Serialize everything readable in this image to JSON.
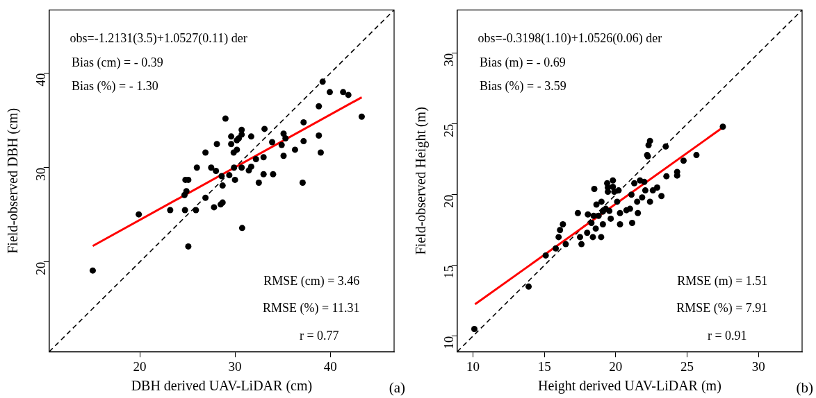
{
  "chart_data": [
    {
      "type": "scatter",
      "xlabel": "DBH derived UAV-LiDAR (cm)",
      "ylabel": "Field-observed DBH (cm)",
      "xlim": [
        10.5,
        46.7
      ],
      "ylim": [
        10.5,
        46.7
      ],
      "xticks": [
        20,
        30,
        40
      ],
      "yticks": [
        20,
        30,
        40
      ],
      "grid": false,
      "legend": false,
      "annotations": [
        "obs=-1.2131(3.5)+1.0527(0.11) der",
        "Bias (cm) = - 0.39",
        "Bias (%) = - 1.30",
        "RMSE (cm) = 3.46",
        "RMSE (%) = 11.31",
        "r = 0.77",
        "(a)"
      ],
      "series": [
        {
          "type": "scatter",
          "color": "#000000",
          "marker": "circle",
          "x": [
            15.07,
            19.9,
            23.2,
            24.75,
            25.9,
            25.1,
            24.7,
            24.9,
            24.8,
            25.1,
            26.0,
            26.9,
            26.9,
            27.5,
            27.8,
            28.0,
            28.1,
            28.6,
            28.7,
            28.5,
            28.7,
            29.0,
            29.4,
            29.6,
            29.6,
            29.86,
            29.9,
            30.0,
            30.2,
            30.2,
            30.4,
            30.7,
            30.7,
            30.7,
            30.75,
            31.45,
            31.7,
            31.7,
            32.2,
            32.5,
            33.0,
            33.0,
            33.1,
            33.9,
            34.0,
            34.9,
            35.1,
            35.1,
            35.3,
            36.3,
            37.1,
            37.2,
            37.2,
            38.8,
            38.8,
            39.0,
            39.2,
            39.95,
            41.35,
            41.9,
            43.3
          ],
          "values": [
            19.1,
            25.05,
            25.5,
            25.5,
            25.5,
            21.65,
            27.1,
            27.5,
            28.7,
            28.7,
            30.0,
            26.8,
            31.6,
            30.0,
            25.8,
            29.65,
            32.5,
            29.1,
            26.3,
            26.1,
            28.1,
            35.2,
            29.2,
            33.3,
            32.5,
            31.6,
            30.0,
            28.7,
            31.9,
            32.9,
            33.1,
            33.5,
            34.0,
            30.0,
            23.6,
            29.7,
            33.3,
            30.1,
            30.9,
            28.4,
            31.1,
            29.3,
            34.1,
            32.7,
            29.3,
            32.4,
            33.6,
            31.25,
            33.1,
            31.9,
            28.4,
            32.8,
            34.8,
            36.5,
            33.4,
            31.6,
            39.1,
            38.0,
            38.0,
            37.7,
            35.4
          ]
        },
        {
          "type": "line",
          "color": "#ff0000",
          "marker": "none",
          "line_style": "solid",
          "x": [
            15.07,
            43.3
          ],
          "values": [
            21.7,
            37.45
          ]
        },
        {
          "type": "line",
          "color": "#000000",
          "marker": "none",
          "line_style": "dashed",
          "x": [
            10.5,
            46.7
          ],
          "values": [
            10.5,
            46.7
          ]
        }
      ]
    },
    {
      "type": "scatter",
      "xlabel": "Height derived UAV-LiDAR (m)",
      "ylabel": "Field-observed Height (m)",
      "xlim": [
        8.9,
        33.05
      ],
      "ylim": [
        8.9,
        33.05
      ],
      "xticks": [
        10,
        15,
        20,
        25,
        30
      ],
      "yticks": [
        10,
        15,
        20,
        25,
        30
      ],
      "grid": false,
      "legend": false,
      "annotations": [
        "obs=-0.3198(1.10)+1.0526(0.06) der",
        "Bias (m) = - 0.69",
        "Bias (%) = - 3.59",
        "RMSE (m) = 1.51",
        "RMSE (%) = 7.91",
        "r = 0.91",
        "(b)"
      ],
      "series": [
        {
          "type": "scatter",
          "color": "#000000",
          "marker": "circle",
          "x": [
            10.1,
            13.9,
            15.1,
            15.8,
            16.0,
            16.1,
            16.3,
            16.5,
            17.35,
            17.5,
            17.6,
            18.0,
            18.05,
            18.3,
            18.4,
            18.45,
            18.5,
            18.6,
            18.65,
            18.8,
            18.98,
            19.0,
            19.1,
            19.1,
            19.3,
            19.4,
            19.45,
            19.45,
            19.55,
            19.65,
            19.8,
            19.8,
            19.9,
            20.1,
            20.2,
            20.3,
            20.3,
            20.75,
            21.0,
            21.1,
            21.15,
            21.3,
            21.5,
            21.55,
            21.7,
            21.85,
            22.0,
            22.07,
            22.2,
            22.25,
            22.3,
            22.4,
            22.4,
            22.6,
            22.9,
            23.2,
            23.5,
            23.55,
            24.3,
            24.3,
            24.75,
            25.65,
            27.5
          ],
          "values": [
            10.5,
            13.5,
            15.7,
            16.2,
            17.0,
            17.5,
            17.9,
            16.5,
            18.7,
            17.0,
            16.5,
            17.3,
            18.6,
            18.0,
            17.0,
            18.5,
            20.4,
            17.6,
            19.3,
            18.5,
            17.0,
            19.5,
            17.9,
            18.8,
            19.0,
            20.8,
            20.5,
            20.2,
            18.85,
            18.3,
            21.0,
            20.55,
            20.2,
            19.5,
            20.3,
            18.7,
            17.9,
            18.9,
            19.0,
            20.0,
            18.0,
            20.8,
            19.5,
            18.7,
            21.0,
            19.8,
            20.9,
            20.3,
            22.8,
            22.7,
            23.5,
            23.8,
            19.5,
            20.3,
            20.5,
            19.9,
            23.4,
            21.3,
            21.6,
            21.35,
            22.4,
            22.8,
            24.8
          ]
        },
        {
          "type": "line",
          "color": "#ff0000",
          "marker": "none",
          "line_style": "solid",
          "x": [
            10.15,
            27.5
          ],
          "values": [
            12.25,
            24.75
          ]
        },
        {
          "type": "line",
          "color": "#000000",
          "marker": "none",
          "line_style": "dashed",
          "x": [
            8.9,
            33.05
          ],
          "values": [
            8.9,
            33.05
          ]
        }
      ]
    }
  ]
}
